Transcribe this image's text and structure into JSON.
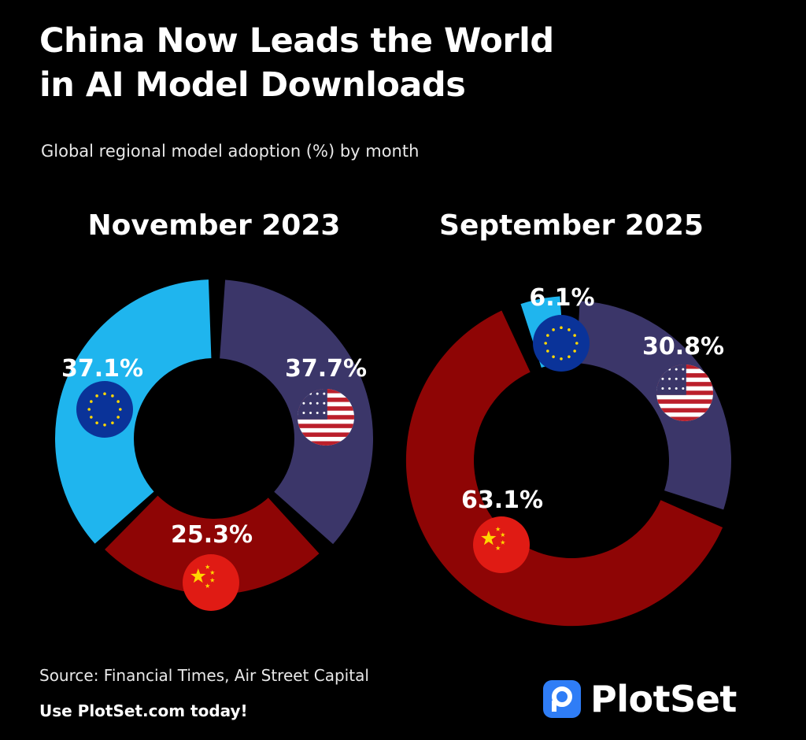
{
  "title_lines": [
    "China Now Leads the World",
    "in AI Model Downloads"
  ],
  "subtitle": "Global regional model adoption (%) by month",
  "source": "Source: Financial Times, Air Street Capital",
  "cta": "Use PlotSet.com today!",
  "brand": {
    "name": "PlotSet",
    "color": "#2f7df6"
  },
  "colors": {
    "background": "#000000",
    "us": "#3b3669",
    "china": "#8e0505",
    "eu": "#1fb5ee",
    "eu_flag": "#0a3399",
    "flag_red": "#bb1f2b",
    "china_flag": "#e01b14",
    "star": "#ffd700"
  },
  "chart_data": [
    {
      "type": "pie",
      "subtype": "donut",
      "title": "November 2023",
      "categories": [
        "US",
        "China",
        "EU"
      ],
      "values": [
        37.7,
        25.3,
        37.1
      ],
      "labels": [
        "37.7%",
        "25.3%",
        "37.1%"
      ],
      "icons": [
        "us-flag-icon",
        "china-flag-icon",
        "eu-flag-icon"
      ]
    },
    {
      "type": "pie",
      "subtype": "donut",
      "title": "September 2025",
      "categories": [
        "US",
        "China",
        "EU"
      ],
      "values": [
        30.8,
        63.1,
        6.1
      ],
      "labels": [
        "30.8%",
        "63.1%",
        "6.1%"
      ],
      "icons": [
        "us-flag-icon",
        "china-flag-icon",
        "eu-flag-icon"
      ]
    }
  ]
}
